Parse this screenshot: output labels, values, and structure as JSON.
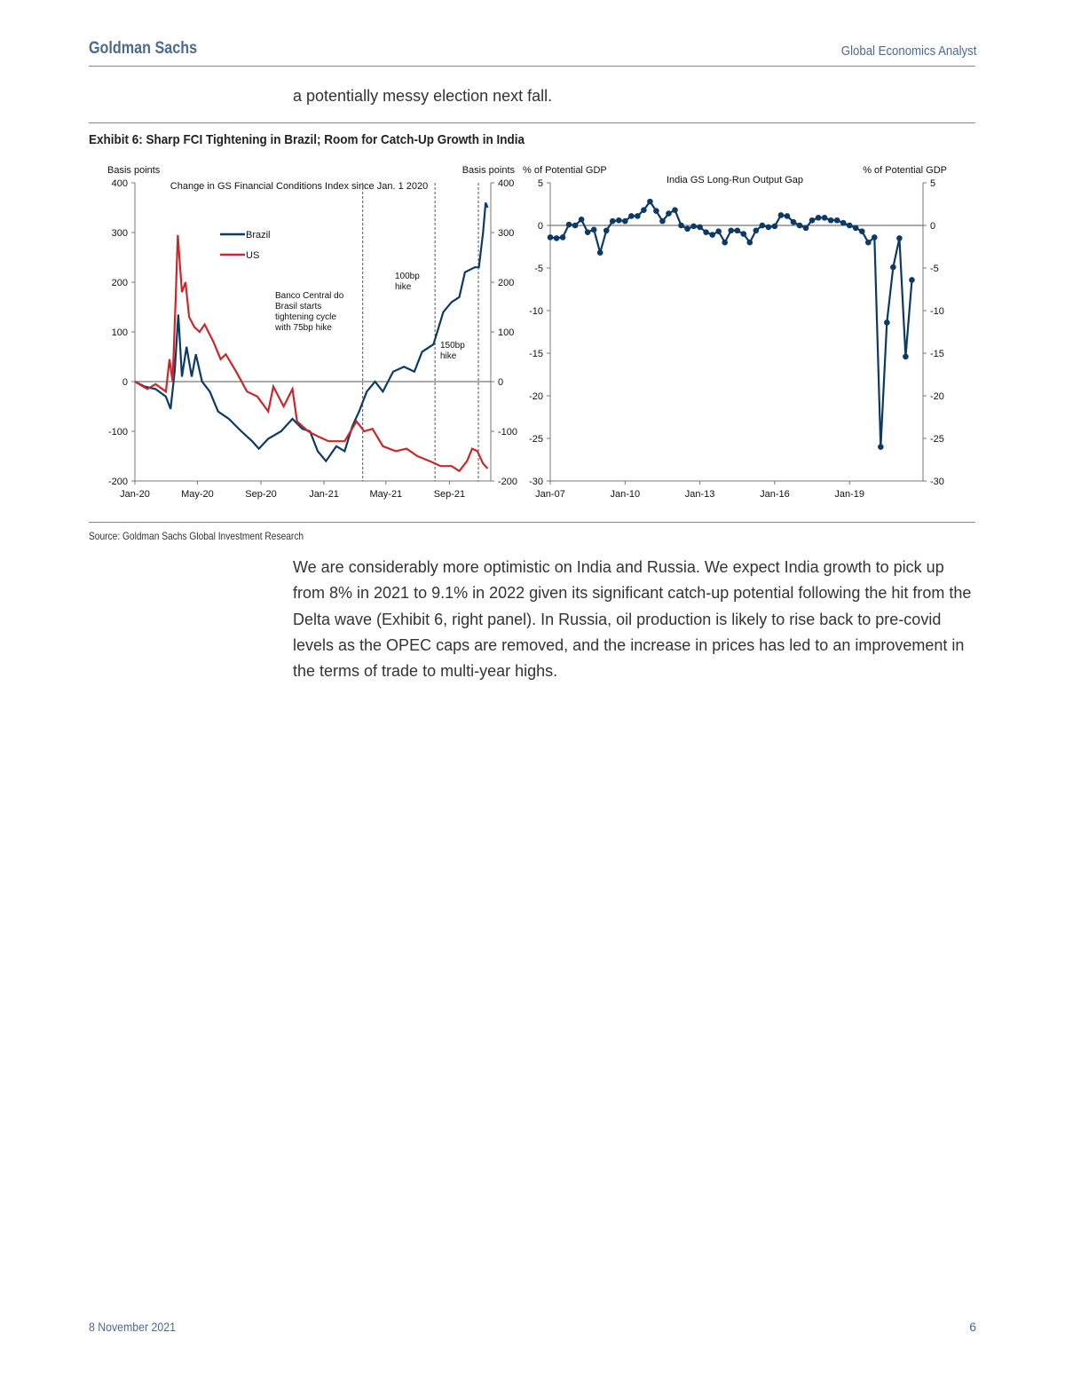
{
  "header": {
    "brand": "Goldman Sachs",
    "publication": "Global Economics Analyst"
  },
  "intro_text": "a potentially messy election next fall.",
  "exhibit": {
    "title": "Exhibit 6: Sharp FCI Tightening in Brazil; Room for Catch-Up Growth in India",
    "source": "Source: Goldman Sachs Global Investment Research"
  },
  "body_text": "We are considerably more optimistic on India and Russia.  We expect India growth to pick up from 8% in 2021 to 9.1% in 2022 given its significant catch-up potential following the hit from the Delta wave (Exhibit 6, right panel).  In Russia, oil production is likely to rise back to pre-covid levels as the OPEC caps are removed, and the increase in prices has led to an improvement in the terms of trade to multi-year highs.",
  "footer": {
    "date": "8 November 2021",
    "page": "6"
  },
  "chart_data": [
    {
      "type": "line",
      "title": "Change in GS Financial Conditions Index since Jan. 1 2020",
      "ylabel_left": "Basis points",
      "ylabel_right": "Basis points",
      "ylim": [
        -200,
        400
      ],
      "yticks": [
        -200,
        -100,
        0,
        100,
        200,
        300,
        400
      ],
      "xticks": [
        "Jan-20",
        "May-20",
        "Sep-20",
        "Jan-21",
        "May-21",
        "Sep-21"
      ],
      "xtick_dates": [
        "2020-01-01",
        "2020-05-01",
        "2020-09-01",
        "2021-01-01",
        "2021-05-01",
        "2021-09-01"
      ],
      "xlim": [
        "2020-01-01",
        "2021-11-20"
      ],
      "grid": false,
      "legend": "upper-left",
      "annotations": [
        {
          "text": "Banco Central do Brasil starts tightening cycle with 75bp hike",
          "date": "2021-03-17",
          "lines": [
            "Banco Central do",
            "Brasil starts",
            "tightening cycle",
            "with 75bp hike"
          ]
        },
        {
          "text": "100bp hike",
          "date": "2021-08-04",
          "lines": [
            "100bp",
            "hike"
          ]
        },
        {
          "text": "150bp hike",
          "date": "2021-10-27",
          "lines": [
            "150bp",
            "hike"
          ]
        }
      ],
      "series": [
        {
          "name": "Brazil",
          "color": "#0c3a66",
          "points": [
            [
              "2020-01-01",
              0
            ],
            [
              "2020-01-20",
              -10
            ],
            [
              "2020-02-10",
              -15
            ],
            [
              "2020-03-01",
              -30
            ],
            [
              "2020-03-10",
              -55
            ],
            [
              "2020-03-18",
              20
            ],
            [
              "2020-03-25",
              135
            ],
            [
              "2020-04-01",
              10
            ],
            [
              "2020-04-10",
              70
            ],
            [
              "2020-04-20",
              10
            ],
            [
              "2020-04-28",
              55
            ],
            [
              "2020-05-10",
              0
            ],
            [
              "2020-05-25",
              -20
            ],
            [
              "2020-06-10",
              -60
            ],
            [
              "2020-07-01",
              -75
            ],
            [
              "2020-07-25",
              -100
            ],
            [
              "2020-08-15",
              -120
            ],
            [
              "2020-08-28",
              -135
            ],
            [
              "2020-09-15",
              -115
            ],
            [
              "2020-10-10",
              -100
            ],
            [
              "2020-11-01",
              -75
            ],
            [
              "2020-11-20",
              -95
            ],
            [
              "2020-12-05",
              -100
            ],
            [
              "2020-12-20",
              -140
            ],
            [
              "2021-01-05",
              -160
            ],
            [
              "2021-01-25",
              -130
            ],
            [
              "2021-02-10",
              -140
            ],
            [
              "2021-02-25",
              -90
            ],
            [
              "2021-03-10",
              -60
            ],
            [
              "2021-03-25",
              -20
            ],
            [
              "2021-04-10",
              0
            ],
            [
              "2021-04-25",
              -20
            ],
            [
              "2021-05-15",
              20
            ],
            [
              "2021-06-05",
              30
            ],
            [
              "2021-06-25",
              20
            ],
            [
              "2021-07-10",
              60
            ],
            [
              "2021-08-01",
              75
            ],
            [
              "2021-08-20",
              140
            ],
            [
              "2021-09-05",
              160
            ],
            [
              "2021-09-20",
              170
            ],
            [
              "2021-10-01",
              220
            ],
            [
              "2021-10-20",
              230
            ],
            [
              "2021-10-28",
              230
            ],
            [
              "2021-11-05",
              300
            ],
            [
              "2021-11-10",
              360
            ],
            [
              "2021-11-14",
              350
            ]
          ]
        },
        {
          "name": "US",
          "color": "#c8282c",
          "points": [
            [
              "2020-01-01",
              0
            ],
            [
              "2020-01-25",
              -15
            ],
            [
              "2020-02-10",
              -5
            ],
            [
              "2020-03-01",
              -20
            ],
            [
              "2020-03-08",
              45
            ],
            [
              "2020-03-14",
              0
            ],
            [
              "2020-03-20",
              170
            ],
            [
              "2020-03-24",
              295
            ],
            [
              "2020-04-01",
              180
            ],
            [
              "2020-04-08",
              200
            ],
            [
              "2020-04-15",
              130
            ],
            [
              "2020-04-25",
              110
            ],
            [
              "2020-05-05",
              100
            ],
            [
              "2020-05-15",
              115
            ],
            [
              "2020-06-01",
              80
            ],
            [
              "2020-06-15",
              45
            ],
            [
              "2020-06-25",
              55
            ],
            [
              "2020-07-15",
              20
            ],
            [
              "2020-08-05",
              -20
            ],
            [
              "2020-08-25",
              -30
            ],
            [
              "2020-09-15",
              -60
            ],
            [
              "2020-09-25",
              -10
            ],
            [
              "2020-10-15",
              -50
            ],
            [
              "2020-11-01",
              -15
            ],
            [
              "2020-11-10",
              -80
            ],
            [
              "2020-12-01",
              -100
            ],
            [
              "2020-12-20",
              -110
            ],
            [
              "2021-01-10",
              -120
            ],
            [
              "2021-02-10",
              -120
            ],
            [
              "2021-03-05",
              -80
            ],
            [
              "2021-03-20",
              -100
            ],
            [
              "2021-04-05",
              -95
            ],
            [
              "2021-04-25",
              -130
            ],
            [
              "2021-05-20",
              -140
            ],
            [
              "2021-06-10",
              -135
            ],
            [
              "2021-07-01",
              -150
            ],
            [
              "2021-07-25",
              -160
            ],
            [
              "2021-08-15",
              -170
            ],
            [
              "2021-09-05",
              -170
            ],
            [
              "2021-09-20",
              -180
            ],
            [
              "2021-10-05",
              -160
            ],
            [
              "2021-10-15",
              -135
            ],
            [
              "2021-10-25",
              -140
            ],
            [
              "2021-11-05",
              -165
            ],
            [
              "2021-11-14",
              -175
            ]
          ]
        }
      ]
    },
    {
      "type": "line",
      "title": "India GS Long-Run Output Gap",
      "ylabel_left": "% of Potential GDP",
      "ylabel_right": "% of Potential GDP",
      "ylim": [
        -30,
        5
      ],
      "yticks": [
        -30,
        -25,
        -20,
        -15,
        -10,
        -5,
        0,
        5
      ],
      "xticks": [
        "Jan-07",
        "Jan-10",
        "Jan-13",
        "Jan-16",
        "Jan-19"
      ],
      "x_start_quarter": "2007Q1",
      "frequency": "quarterly",
      "markers": true,
      "grid": false,
      "series": [
        {
          "color": "#0c3a66",
          "values": [
            -1.4,
            -1.5,
            -1.4,
            0.1,
            0,
            0.7,
            -0.8,
            -0.5,
            -3.2,
            -0.6,
            0.5,
            0.6,
            0.5,
            1.1,
            1.1,
            1.8,
            2.8,
            1.7,
            0.5,
            1.4,
            1.8,
            0,
            -0.4,
            -0.1,
            -0.2,
            -0.8,
            -1.1,
            -0.7,
            -2,
            -0.6,
            -0.6,
            -1,
            -2,
            -0.6,
            0,
            -0.2,
            -0.1,
            1.2,
            1.1,
            0.4,
            0,
            -0.3,
            0.6,
            0.9,
            0.9,
            0.6,
            0.6,
            0.3,
            0,
            -0.3,
            -0.7,
            -2,
            -1.4,
            -26,
            -11.4,
            -4.9,
            -1.5,
            -15.4,
            -6.4
          ]
        }
      ]
    }
  ]
}
